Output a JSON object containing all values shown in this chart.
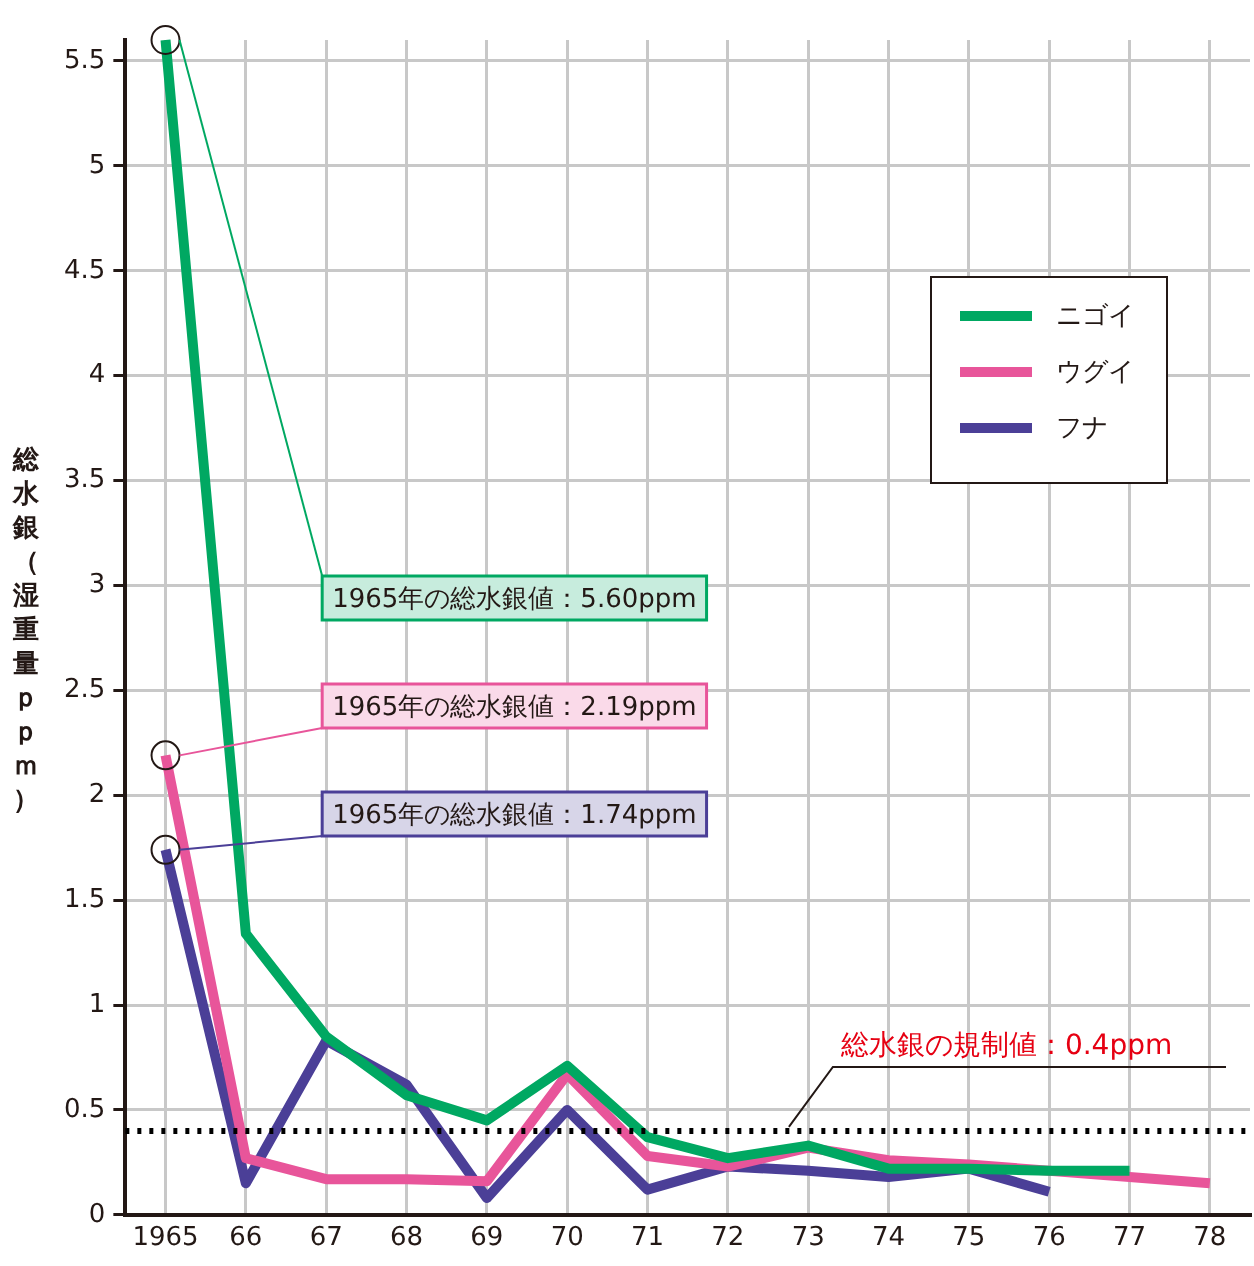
{
  "chart_data": {
    "type": "line",
    "ylabel": "総水銀（湿重量ｐｐｍ）",
    "categories": [
      "1965",
      "66",
      "67",
      "68",
      "69",
      "70",
      "71",
      "72",
      "73",
      "74",
      "75",
      "76",
      "77",
      "78"
    ],
    "series": [
      {
        "name": "ニゴイ",
        "color": "#00a862",
        "values": [
          5.6,
          1.34,
          0.85,
          0.57,
          0.45,
          0.71,
          0.37,
          0.27,
          0.33,
          0.22,
          0.22,
          0.21,
          0.21,
          null
        ]
      },
      {
        "name": "ウグイ",
        "color": "#e8559a",
        "values": [
          2.19,
          0.27,
          0.17,
          0.17,
          0.16,
          0.67,
          0.28,
          0.23,
          0.32,
          0.26,
          0.24,
          0.21,
          0.18,
          0.15
        ]
      },
      {
        "name": "フナ",
        "color": "#4b3f97",
        "values": [
          1.74,
          0.15,
          0.83,
          0.62,
          0.08,
          0.5,
          0.12,
          0.23,
          0.21,
          0.18,
          0.22,
          0.11,
          null,
          null
        ]
      }
    ],
    "ylim": [
      0,
      5.6
    ],
    "yticks": [
      0,
      0.5,
      1,
      1.5,
      2,
      2.5,
      3,
      3.5,
      4,
      4.5,
      5,
      5.5
    ],
    "grid": true,
    "legend": "top right",
    "marker": "none",
    "line_style": "solid",
    "ref_lines": [
      {
        "axis": "y",
        "value": 0.4,
        "label": "総水銀の規制値：0.4ppm",
        "color": "#000000",
        "line_style": "dotted"
      }
    ],
    "annotations": [
      {
        "text": "1965年の総水銀値：5.60ppm",
        "x": "1965",
        "y": 5.6
      },
      {
        "text": "1965年の総水銀値：2.19ppm",
        "x": "1965",
        "y": 2.19
      },
      {
        "text": "1965年の総水銀値：1.74ppm",
        "x": "1965",
        "y": 1.74
      }
    ]
  }
}
